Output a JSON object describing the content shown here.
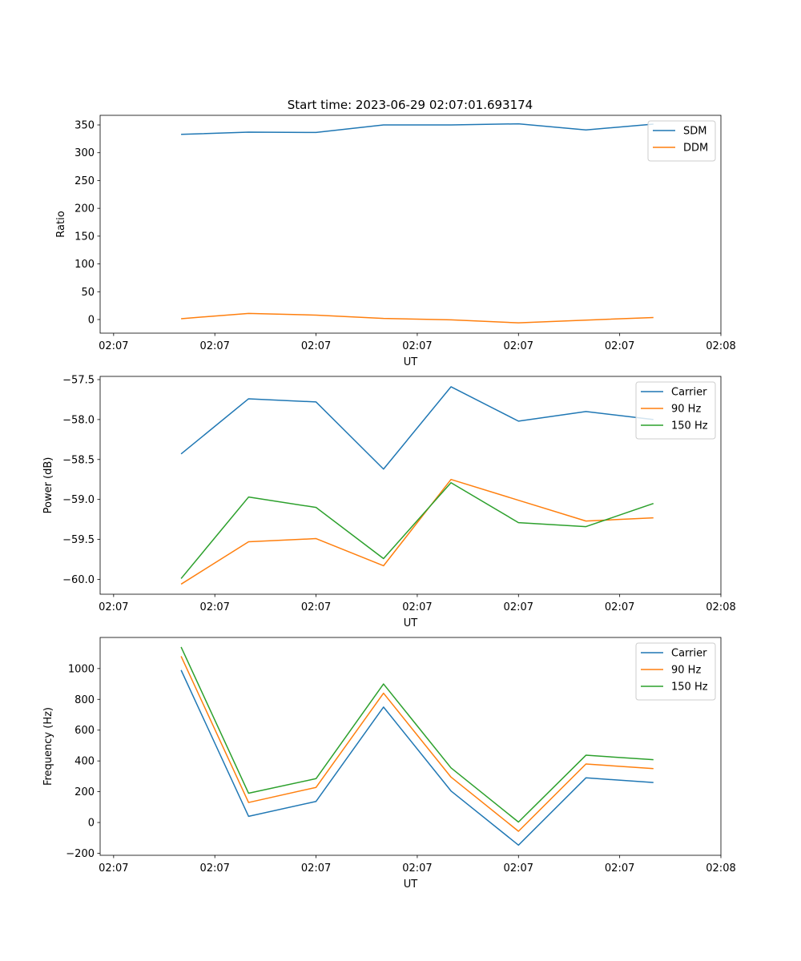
{
  "figure_title": "Start time: 2023-06-29 02:07:01.693174",
  "chart_data": [
    {
      "type": "line",
      "title": "Start time: 2023-06-29 02:07:01.693174",
      "xlabel": "UT",
      "ylabel": "Ratio",
      "x": [
        0.5,
        1.0,
        1.5,
        2.0,
        2.5,
        3.0,
        3.5,
        4.0
      ],
      "xlim": [
        -0.1,
        4.5
      ],
      "xticks": [
        0,
        0.75,
        1.5,
        2.25,
        3.0,
        3.75,
        4.5
      ],
      "xtick_labels": [
        "02:07",
        "02:07",
        "02:07",
        "02:07",
        "02:07",
        "02:07",
        "02:08"
      ],
      "ylim": [
        -24.5,
        367.3
      ],
      "yticks": [
        0,
        50,
        100,
        150,
        200,
        250,
        300,
        350
      ],
      "ytick_labels": [
        "0",
        "50",
        "100",
        "150",
        "200",
        "250",
        "300",
        "350"
      ],
      "legend": "top-right",
      "grid": false,
      "series": [
        {
          "name": "SDM",
          "color": "#1f77b4",
          "values": [
            333,
            337,
            336.5,
            350,
            350,
            352,
            341,
            351.5
          ]
        },
        {
          "name": "DDM",
          "color": "#ff7f0e",
          "values": [
            1.5,
            11,
            8,
            2,
            -0.5,
            -6,
            -1,
            3.5
          ]
        }
      ]
    },
    {
      "type": "line",
      "title": "",
      "xlabel": "UT",
      "ylabel": "Power (dB)",
      "x": [
        0.5,
        1.0,
        1.5,
        2.0,
        2.5,
        3.0,
        3.5,
        4.0
      ],
      "xlim": [
        -0.1,
        4.5
      ],
      "xticks": [
        0,
        0.75,
        1.5,
        2.25,
        3.0,
        3.75,
        4.5
      ],
      "xtick_labels": [
        "02:07",
        "02:07",
        "02:07",
        "02:07",
        "02:07",
        "02:07",
        "02:08"
      ],
      "ylim": [
        -60.186,
        -57.46
      ],
      "yticks": [
        -60.0,
        -59.5,
        -59.0,
        -58.5,
        -58.0,
        -57.5
      ],
      "ytick_labels": [
        "−60.0",
        "−59.5",
        "−59.0",
        "−58.5",
        "−58.0",
        "−57.5"
      ],
      "legend": "top-right",
      "grid": false,
      "series": [
        {
          "name": "Carrier",
          "color": "#1f77b4",
          "values": [
            -58.43,
            -57.74,
            -57.78,
            -58.62,
            -57.59,
            -58.02,
            -57.9,
            -58.0
          ]
        },
        {
          "name": "90 Hz",
          "color": "#ff7f0e",
          "values": [
            -60.06,
            -59.53,
            -59.49,
            -59.83,
            -58.75,
            -59.01,
            -59.27,
            -59.23
          ]
        },
        {
          "name": "150 Hz",
          "color": "#2ca02c",
          "values": [
            -59.99,
            -58.97,
            -59.1,
            -59.74,
            -58.79,
            -59.29,
            -59.34,
            -59.05
          ]
        }
      ]
    },
    {
      "type": "line",
      "title": "",
      "xlabel": "UT",
      "ylabel": "Frequency (Hz)",
      "x": [
        0.5,
        1.0,
        1.5,
        2.0,
        2.5,
        3.0,
        3.5,
        4.0
      ],
      "xlim": [
        -0.1,
        4.5
      ],
      "xticks": [
        0,
        0.75,
        1.5,
        2.25,
        3.0,
        3.75,
        4.5
      ],
      "xtick_labels": [
        "02:07",
        "02:07",
        "02:07",
        "02:07",
        "02:07",
        "02:07",
        "02:08"
      ],
      "ylim": [
        -213,
        1202
      ],
      "yticks": [
        -200,
        0,
        200,
        400,
        600,
        800,
        1000
      ],
      "ytick_labels": [
        "−200",
        "0",
        "200",
        "400",
        "600",
        "800",
        "1000"
      ],
      "legend": "top-right",
      "grid": false,
      "series": [
        {
          "name": "Carrier",
          "color": "#1f77b4",
          "values": [
            990,
            40,
            137,
            750,
            205,
            -147,
            290,
            260
          ]
        },
        {
          "name": "90 Hz",
          "color": "#ff7f0e",
          "values": [
            1080,
            130,
            228,
            840,
            295,
            -57,
            380,
            350
          ]
        },
        {
          "name": "150 Hz",
          "color": "#2ca02c",
          "values": [
            1140,
            190,
            285,
            900,
            355,
            3,
            437,
            408
          ]
        }
      ]
    }
  ]
}
